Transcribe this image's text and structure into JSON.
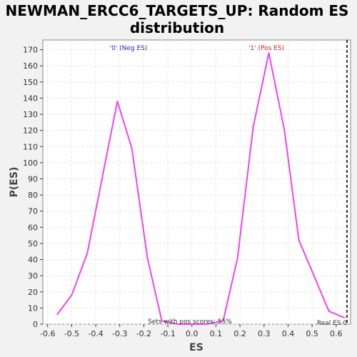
{
  "chart_data": {
    "type": "line",
    "title_line1": "NEWMAN_ERCC6_TARGETS_UP: Random ES",
    "title_line2": "distribution",
    "xlabel": "ES",
    "ylabel": "P(ES)",
    "xlim": [
      -0.62,
      0.66
    ],
    "ylim": [
      0,
      176
    ],
    "grid": true,
    "x_ticks": [
      -0.6,
      -0.5,
      -0.4,
      -0.3,
      -0.2,
      -0.1,
      0.0,
      0.1,
      0.2,
      0.3,
      0.4,
      0.5,
      0.6
    ],
    "x_tick_labels": [
      "-0.6",
      "-0.5",
      "-0.4",
      "-0.3",
      "-0.2",
      "-0.1",
      "0.0",
      "0.1",
      "0.2",
      "0.3",
      "0.4",
      "0.5",
      "0.6"
    ],
    "y_ticks": [
      0,
      10,
      20,
      30,
      40,
      50,
      60,
      70,
      80,
      90,
      100,
      110,
      120,
      130,
      140,
      150,
      160,
      170
    ],
    "series": [
      {
        "color": "#ee44ee",
        "x": [
          -0.56,
          -0.5,
          -0.435,
          -0.37,
          -0.31,
          -0.25,
          -0.185,
          -0.125,
          -0.06,
          0.0,
          0.06,
          0.13,
          0.19,
          0.255,
          0.32,
          0.385,
          0.445,
          0.505,
          0.57,
          0.635
        ],
        "y": [
          6,
          18,
          44,
          93,
          138,
          109,
          41,
          2,
          0,
          0,
          0,
          2,
          41,
          122,
          168,
          120,
          52,
          31,
          8,
          4
        ]
      }
    ],
    "annotations": {
      "neg_label": "'0' (Neg ES)",
      "neg_color": "#2222cc",
      "pos_label": "'1' (Pos ES)",
      "pos_color": "#cc2222",
      "sets_text": "Sets with pos scores: 55%",
      "real_es_label": "Real ES 0.",
      "real_es_x": 0.645
    }
  }
}
